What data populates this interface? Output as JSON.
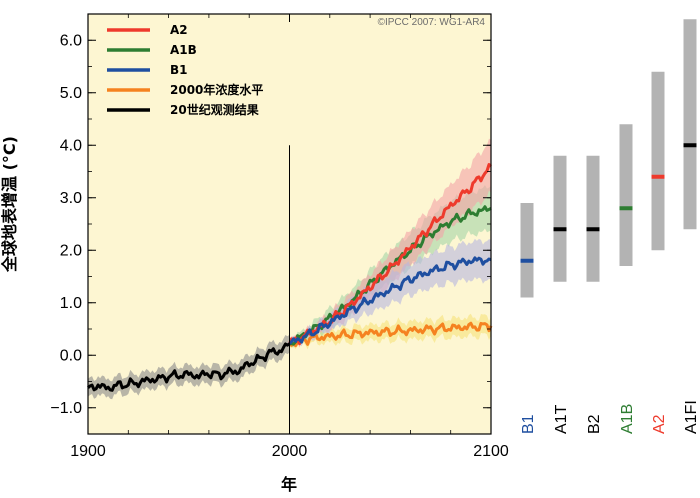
{
  "chart_data": {
    "type": "line",
    "xlabel": "年",
    "ylabel": "全球地表增温 (°C)",
    "xlim": [
      1900,
      2100
    ],
    "ylim": [
      -1.5,
      6.5
    ],
    "x_ticks": [
      1900,
      2000,
      2100
    ],
    "x_tick_labels": [
      "1900",
      "2000",
      "2100"
    ],
    "y_ticks": [
      -1.0,
      0.0,
      1.0,
      2.0,
      3.0,
      4.0,
      5.0,
      6.0
    ],
    "y_tick_labels": [
      "−1.0",
      "0.0",
      "1.0",
      "2.0",
      "3.0",
      "4.0",
      "5.0",
      "6.0"
    ],
    "divider_year": 2000,
    "credit": "©IPCC  2007: WG1-AR4",
    "legend": [
      {
        "label": "A2",
        "color": "#ee3a2c"
      },
      {
        "label": "A1B",
        "color": "#2e7d32"
      },
      {
        "label": "B1",
        "color": "#1f4fa0"
      },
      {
        "label": "2000年浓度水平",
        "color": "#f58220"
      },
      {
        "label": "20世纪观测结果",
        "color": "#000000"
      }
    ],
    "series": [
      {
        "name": "20世纪观测结果",
        "color": "#000000",
        "band_color": "#8a8a8a",
        "x": [
          1900,
          1905,
          1910,
          1915,
          1920,
          1925,
          1930,
          1935,
          1940,
          1945,
          1950,
          1955,
          1960,
          1965,
          1970,
          1975,
          1980,
          1985,
          1990,
          1995,
          2000
        ],
        "values": [
          -0.62,
          -0.58,
          -0.63,
          -0.57,
          -0.55,
          -0.52,
          -0.47,
          -0.45,
          -0.4,
          -0.38,
          -0.36,
          -0.4,
          -0.34,
          -0.38,
          -0.32,
          -0.3,
          -0.15,
          -0.08,
          0.05,
          0.08,
          0.22
        ],
        "band_width": 0.17
      },
      {
        "name": "A2",
        "color": "#ee3a2c",
        "band_color": "#f4a3a6",
        "x": [
          2000,
          2010,
          2020,
          2030,
          2040,
          2050,
          2060,
          2070,
          2080,
          2090,
          2100
        ],
        "values": [
          0.22,
          0.42,
          0.65,
          0.95,
          1.3,
          1.65,
          2.05,
          2.45,
          2.85,
          3.2,
          3.6
        ],
        "band_width": [
          0.05,
          0.1,
          0.15,
          0.2,
          0.25,
          0.3,
          0.33,
          0.37,
          0.4,
          0.45,
          0.5
        ]
      },
      {
        "name": "A1B",
        "color": "#2e7d32",
        "band_color": "#a5d6a7",
        "x": [
          2000,
          2010,
          2020,
          2030,
          2040,
          2050,
          2060,
          2070,
          2080,
          2090,
          2100
        ],
        "values": [
          0.22,
          0.45,
          0.7,
          1.0,
          1.35,
          1.7,
          2.0,
          2.3,
          2.55,
          2.7,
          2.8
        ],
        "band_width": [
          0.05,
          0.12,
          0.18,
          0.22,
          0.26,
          0.3,
          0.32,
          0.35,
          0.38,
          0.4,
          0.42
        ]
      },
      {
        "name": "B1",
        "color": "#1f4fa0",
        "band_color": "#b8b8e0",
        "x": [
          2000,
          2010,
          2020,
          2030,
          2040,
          2050,
          2060,
          2070,
          2080,
          2090,
          2100
        ],
        "values": [
          0.22,
          0.4,
          0.62,
          0.85,
          1.05,
          1.25,
          1.45,
          1.6,
          1.72,
          1.8,
          1.82
        ],
        "band_width": [
          0.05,
          0.1,
          0.15,
          0.2,
          0.25,
          0.28,
          0.3,
          0.32,
          0.34,
          0.36,
          0.38
        ]
      },
      {
        "name": "2000年浓度水平",
        "color": "#f58220",
        "band_color": "#f6e27a",
        "x": [
          2000,
          2010,
          2020,
          2030,
          2040,
          2050,
          2060,
          2070,
          2080,
          2090,
          2100
        ],
        "values": [
          0.22,
          0.32,
          0.36,
          0.4,
          0.43,
          0.45,
          0.47,
          0.5,
          0.52,
          0.54,
          0.56
        ],
        "band_width": [
          0.05,
          0.1,
          0.12,
          0.14,
          0.15,
          0.16,
          0.17,
          0.17,
          0.18,
          0.18,
          0.18
        ]
      }
    ],
    "range_bars": [
      {
        "label": "B1",
        "label_color": "#1f4fa0",
        "low": 1.1,
        "high": 2.9,
        "best": 1.8,
        "best_color": "#1f4fa0"
      },
      {
        "label": "A1T",
        "label_color": "#000000",
        "low": 1.4,
        "high": 3.8,
        "best": 2.4,
        "best_color": "#000000"
      },
      {
        "label": "B2",
        "label_color": "#000000",
        "low": 1.4,
        "high": 3.8,
        "best": 2.4,
        "best_color": "#000000"
      },
      {
        "label": "A1B",
        "label_color": "#2e7d32",
        "low": 1.7,
        "high": 4.4,
        "best": 2.8,
        "best_color": "#2e7d32"
      },
      {
        "label": "A2",
        "label_color": "#ee3a2c",
        "low": 2.0,
        "high": 5.4,
        "best": 3.4,
        "best_color": "#ee3a2c"
      },
      {
        "label": "A1FI",
        "label_color": "#000000",
        "low": 2.4,
        "high": 6.4,
        "best": 4.0,
        "best_color": "#000000"
      }
    ],
    "colors": {
      "plot_bg": "#fdf6d2",
      "bar_gray": "#b3b3b3",
      "axis": "#000000"
    }
  }
}
